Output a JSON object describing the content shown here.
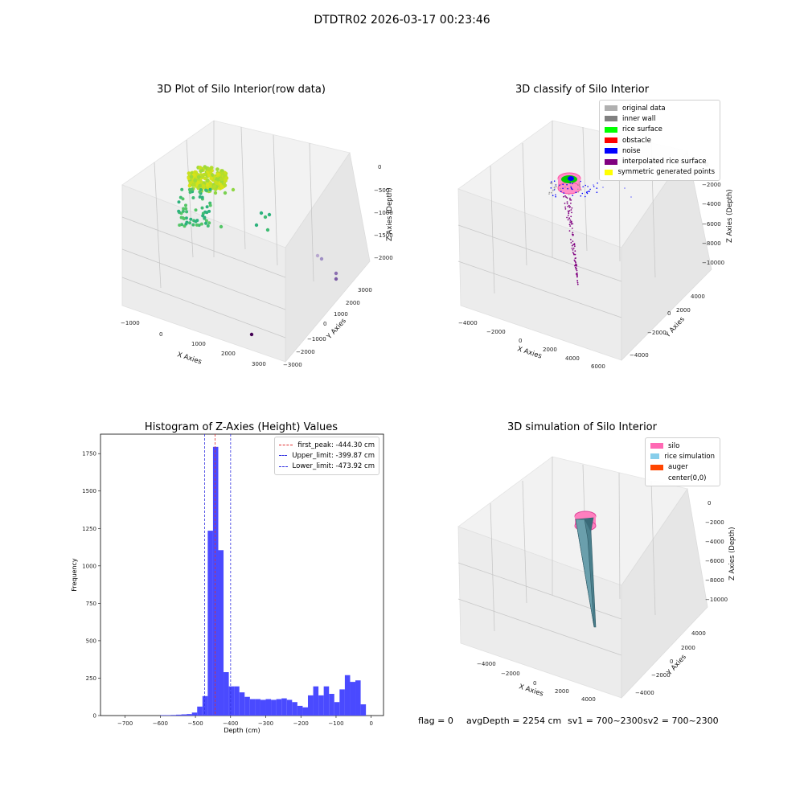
{
  "suptitle": "DTDTR02 2026-03-17 00:23:46",
  "panels": {
    "raw": {
      "title": "3D Plot of Silo Interior(row data)",
      "xlabel": "X Axies",
      "ylabel": "Y Axies",
      "zlabel": "Z Axies (Depth)",
      "xticks": [
        "−1000",
        "0",
        "1000",
        "2000",
        "3000"
      ],
      "yticks": [
        "−3000",
        "−2000",
        "−1000",
        "0",
        "1000",
        "2000",
        "3000"
      ],
      "zticks": [
        "0",
        "−500",
        "−1000",
        "−1500",
        "−2000"
      ]
    },
    "classify": {
      "title": "3D classify of Silo Interior",
      "xlabel": "X Axies",
      "ylabel": "Y Axies",
      "zlabel": "Z Axies (Depth)",
      "xticks": [
        "−4000",
        "−2000",
        "0",
        "2000",
        "4000",
        "6000"
      ],
      "yticks": [
        "−4000",
        "−2000",
        "0",
        "2000",
        "4000"
      ],
      "zticks": [
        "0",
        "−2000",
        "−4000",
        "−6000",
        "−8000",
        "−10000"
      ],
      "legend": [
        {
          "label": "original data",
          "color": "#b0b0b0"
        },
        {
          "label": "inner wall",
          "color": "#808080"
        },
        {
          "label": "rice surface",
          "color": "#00ff00"
        },
        {
          "label": "obstacle",
          "color": "#ff0000"
        },
        {
          "label": "noise",
          "color": "#0000ff"
        },
        {
          "label": "interpolated rice surface",
          "color": "#800080"
        },
        {
          "label": "symmetric generated points",
          "color": "#ffff00"
        }
      ]
    },
    "simulation": {
      "title": "3D simulation of Silo Interior",
      "xlabel": "X Axies",
      "ylabel": "Y Axies",
      "zlabel": "Z Axies (Depth)",
      "xticks": [
        "−4000",
        "−2000",
        "0",
        "2000",
        "4000"
      ],
      "yticks": [
        "−4000",
        "−2000",
        "0",
        "2000",
        "4000"
      ],
      "zticks": [
        "0",
        "−2000",
        "−4000",
        "−6000",
        "−8000",
        "−10000"
      ],
      "legend": [
        {
          "label": "silo",
          "color": "#ff69b4"
        },
        {
          "label": "rice simulation",
          "color": "#87ceeb"
        },
        {
          "label": "auger",
          "color": "#ff4500"
        },
        {
          "label": "center(0,0)",
          "color": "#ffffff"
        }
      ]
    }
  },
  "status": {
    "flag": "flag = 0",
    "avg": "avgDepth = 2254 cm",
    "sv1": "sv1 = 700~2300",
    "sv2": "sv2 = 700~2300"
  },
  "chart_data": [
    {
      "type": "bar",
      "title": "Histogram of Z-Axies (Height) Values",
      "xlabel": "Depth (cm)",
      "ylabel": "Frequency",
      "xlim": [
        -770,
        35
      ],
      "ylim": [
        0,
        1880
      ],
      "xticks": [
        -700,
        -600,
        -500,
        -400,
        -300,
        -200,
        -100,
        0
      ],
      "yticks": [
        0,
        250,
        500,
        750,
        1000,
        1250,
        1500,
        1750
      ],
      "bin_width": 15,
      "bins": [
        {
          "x": -600,
          "v": 3
        },
        {
          "x": -585,
          "v": 3
        },
        {
          "x": -570,
          "v": 4
        },
        {
          "x": -555,
          "v": 6
        },
        {
          "x": -540,
          "v": 8
        },
        {
          "x": -525,
          "v": 10
        },
        {
          "x": -510,
          "v": 20
        },
        {
          "x": -495,
          "v": 60
        },
        {
          "x": -480,
          "v": 130
        },
        {
          "x": -465,
          "v": 1235
        },
        {
          "x": -450,
          "v": 1795
        },
        {
          "x": -435,
          "v": 1105
        },
        {
          "x": -420,
          "v": 290
        },
        {
          "x": -405,
          "v": 195
        },
        {
          "x": -390,
          "v": 195
        },
        {
          "x": -375,
          "v": 155
        },
        {
          "x": -360,
          "v": 125
        },
        {
          "x": -345,
          "v": 110
        },
        {
          "x": -330,
          "v": 110
        },
        {
          "x": -315,
          "v": 105
        },
        {
          "x": -300,
          "v": 110
        },
        {
          "x": -285,
          "v": 105
        },
        {
          "x": -270,
          "v": 110
        },
        {
          "x": -255,
          "v": 115
        },
        {
          "x": -240,
          "v": 105
        },
        {
          "x": -225,
          "v": 90
        },
        {
          "x": -210,
          "v": 65
        },
        {
          "x": -195,
          "v": 55
        },
        {
          "x": -180,
          "v": 135
        },
        {
          "x": -165,
          "v": 195
        },
        {
          "x": -150,
          "v": 135
        },
        {
          "x": -135,
          "v": 195
        },
        {
          "x": -120,
          "v": 145
        },
        {
          "x": -105,
          "v": 90
        },
        {
          "x": -90,
          "v": 175
        },
        {
          "x": -75,
          "v": 270
        },
        {
          "x": -60,
          "v": 225
        },
        {
          "x": -45,
          "v": 235
        },
        {
          "x": -30,
          "v": 75
        }
      ],
      "bar_color": "#4a4aff",
      "vlines": [
        {
          "x": -444.3,
          "label": "first_peak: -444.30 cm",
          "color": "#e03030"
        },
        {
          "x": -399.87,
          "label": "Upper_limit: -399.87 cm",
          "color": "#3030e0"
        },
        {
          "x": -473.92,
          "label": "Lower_limit: -473.92 cm",
          "color": "#3030e0"
        }
      ]
    }
  ]
}
